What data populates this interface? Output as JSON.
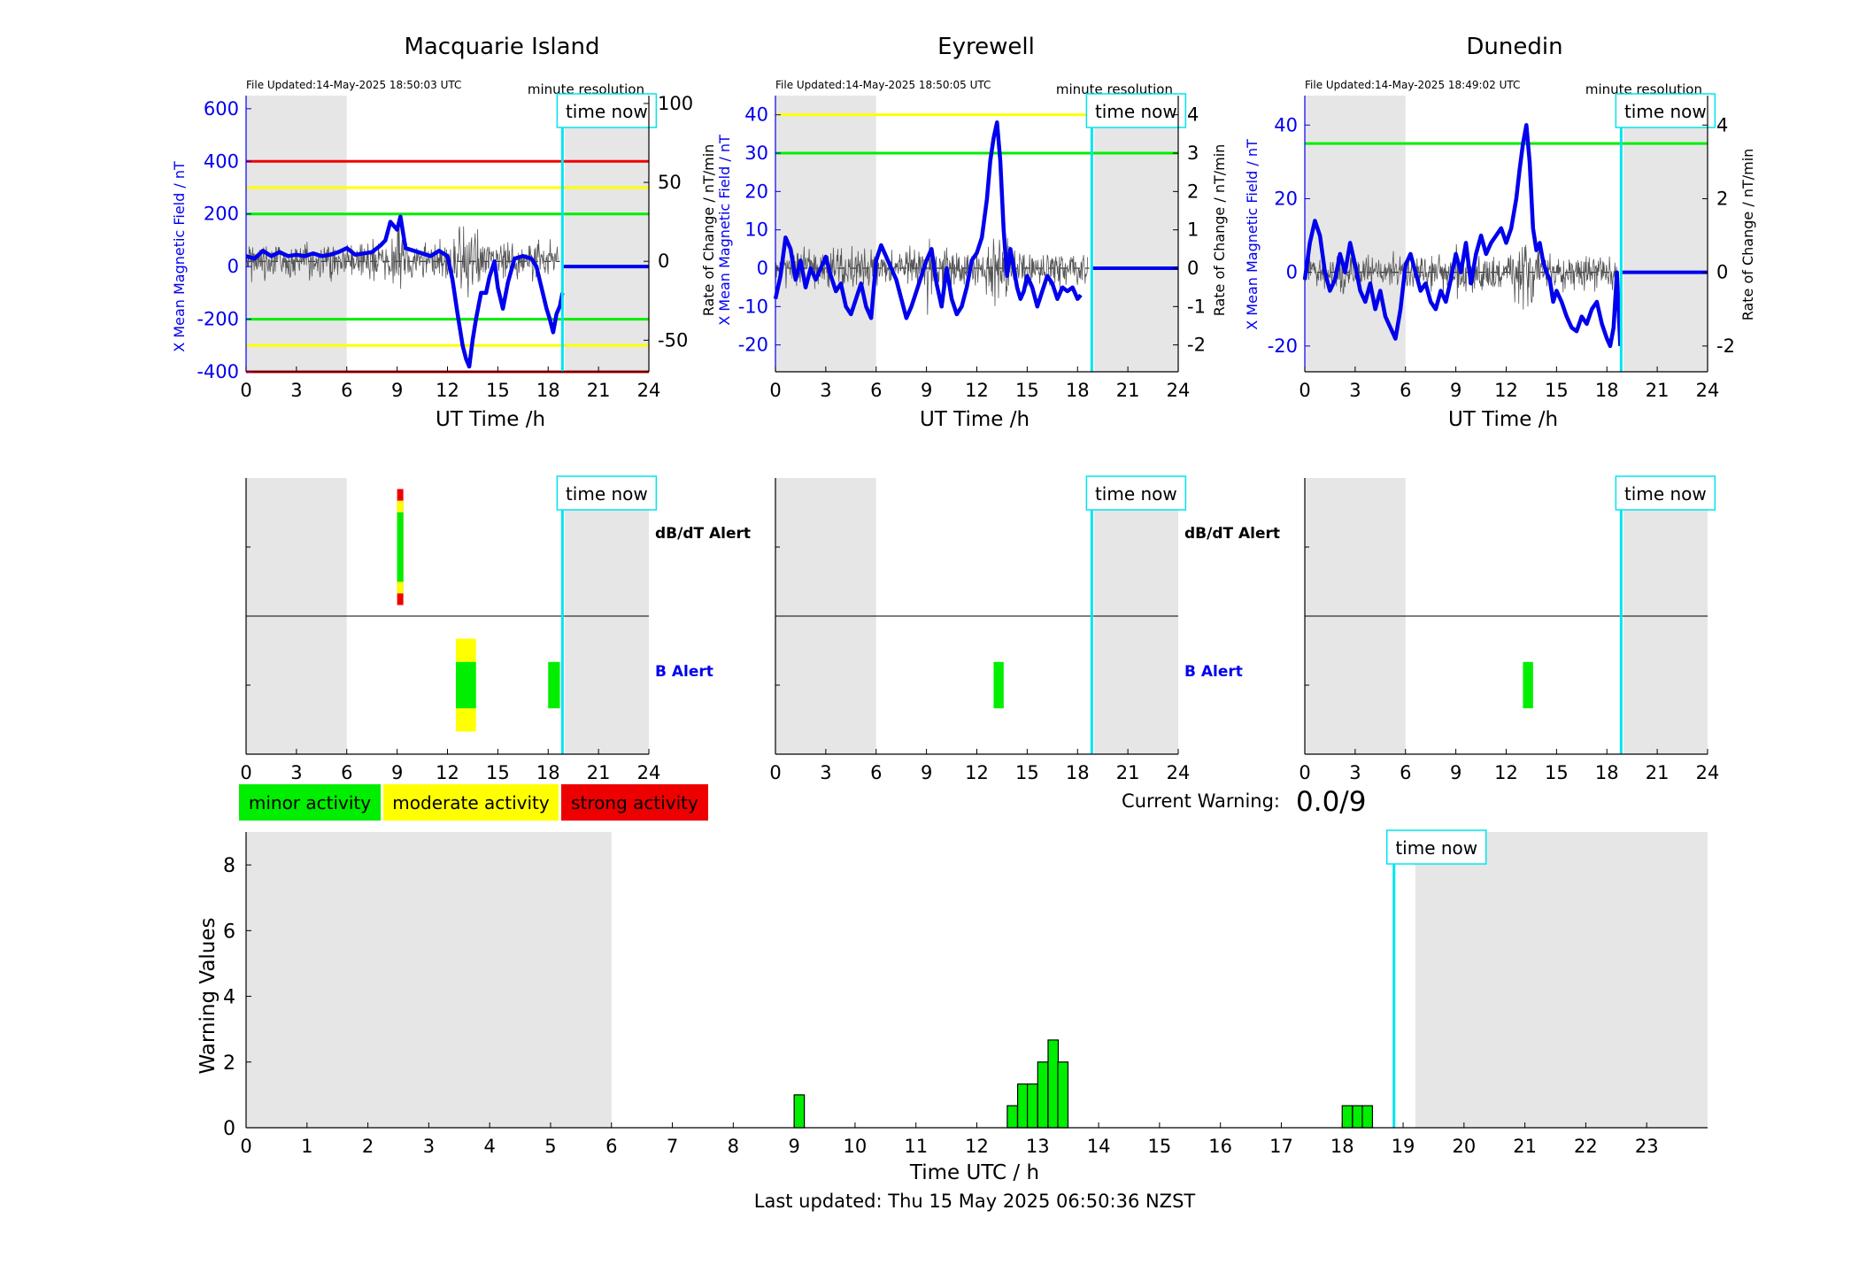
{
  "colors": {
    "blue": "#0000ee",
    "cyan": "#00e5ee",
    "green": "#00ee00",
    "yellow": "#ffff00",
    "red": "#ee0000",
    "grey": "#e6e6e6",
    "noise": "#555555"
  },
  "common": {
    "x_ticks": [
      "0",
      "3",
      "6",
      "9",
      "12",
      "15",
      "18",
      "21",
      "24"
    ],
    "xlabel": "UT Time /h",
    "time_now_label": "time now",
    "time_now_h": 18.85,
    "shade_ranges_h": [
      [
        0,
        6
      ],
      [
        19,
        24
      ]
    ]
  },
  "stations": [
    {
      "name": "Macquarie Island",
      "file_updated": "File Updated:14-May-2025 18:50:03 UTC",
      "resolution": "minute resolution",
      "ylabel_left": "X Mean Magnetic Field / nT",
      "ylabel_right": "",
      "yticks_left": [
        "600",
        "400",
        "200",
        "0",
        "-200",
        "-400"
      ],
      "yticks_right": [
        "100",
        "50",
        "0",
        "-50"
      ],
      "dbdt_label": "dB/dT Alert",
      "b_label": "B Alert"
    },
    {
      "name": "Eyrewell",
      "file_updated": "File Updated:14-May-2025 18:50:05 UTC",
      "resolution": "minute resolution",
      "ylabel_left": "Rate of Change / nT/min\nX Mean Magnetic Field / nT",
      "ylabel_right": "Rate of Change / nT/min",
      "yticks_left": [
        "40",
        "30",
        "20",
        "10",
        "0",
        "-10",
        "-20"
      ],
      "yticks_right": [
        "4",
        "3",
        "2",
        "1",
        "0",
        "-1",
        "-2"
      ],
      "dbdt_label": "dB/dT Alert",
      "b_label": "B Alert"
    },
    {
      "name": "Dunedin",
      "file_updated": "File Updated:14-May-2025 18:49:02 UTC",
      "resolution": "minute resolution",
      "ylabel_left": "X Mean Magnetic Field / nT",
      "ylabel_right": "Rate of Change / nT/min",
      "yticks_left": [
        "40",
        "20",
        "0",
        "-20"
      ],
      "yticks_right": [
        "4",
        "2",
        "0",
        "-2"
      ],
      "dbdt_label": "",
      "b_label": ""
    }
  ],
  "legend": {
    "minor": "minor activity",
    "moderate": "moderate activity",
    "strong": "strong activity"
  },
  "current_warning": {
    "label": "Current Warning:",
    "value": "0.0/9"
  },
  "footer": "Last updated: Thu 15 May 2025 06:50:36 NZST",
  "chart_data": [
    {
      "type": "line",
      "title": "Macquarie Island",
      "xlabel": "UT Time /h",
      "ylabel": "X Mean Magnetic Field / nT",
      "xlim": [
        0,
        24
      ],
      "ylim": [
        -400,
        650
      ],
      "y2lim": [
        -70,
        105
      ],
      "thresholds_nT": [
        {
          "y": 400,
          "color": "red"
        },
        {
          "y": 300,
          "color": "yellow"
        },
        {
          "y": 200,
          "color": "green"
        },
        {
          "y": -200,
          "color": "green"
        },
        {
          "y": -300,
          "color": "yellow"
        },
        {
          "y": -400,
          "color": "red"
        }
      ],
      "series": [
        {
          "x": [
            0,
            0.5,
            1,
            1.5,
            2,
            2.5,
            3,
            3.5,
            4,
            4.5,
            5,
            5.5,
            6,
            6.5,
            7,
            7.5,
            8,
            8.3,
            8.6,
            9,
            9.2,
            9.5,
            10,
            10.5,
            11,
            11.5,
            12,
            12.3,
            12.6,
            12.9,
            13.1,
            13.3,
            13.5,
            13.7,
            14,
            14.3,
            14.5,
            14.8,
            15,
            15.3,
            15.6,
            16,
            16.5,
            17,
            17.3,
            17.6,
            17.9,
            18.1,
            18.3,
            18.5,
            18.7,
            18.85
          ],
          "y": [
            40,
            30,
            60,
            40,
            55,
            40,
            45,
            40,
            50,
            40,
            45,
            55,
            70,
            45,
            50,
            55,
            80,
            100,
            170,
            140,
            190,
            70,
            60,
            50,
            40,
            60,
            40,
            -50,
            -180,
            -300,
            -350,
            -380,
            -280,
            -200,
            -100,
            -100,
            -40,
            20,
            -80,
            -160,
            -60,
            30,
            40,
            30,
            0,
            -80,
            -160,
            -200,
            -250,
            -180,
            -150,
            -100
          ]
        }
      ]
    },
    {
      "type": "line",
      "title": "Eyrewell",
      "xlabel": "UT Time /h",
      "ylabel": "X Mean Magnetic Field / nT",
      "xlim": [
        0,
        24
      ],
      "ylim": [
        -27,
        45
      ],
      "y2lim": [
        -2.7,
        4.5
      ],
      "thresholds_nT": [
        {
          "y": 40,
          "color": "yellow"
        },
        {
          "y": 30,
          "color": "green"
        }
      ],
      "series": [
        {
          "x": [
            0,
            0.3,
            0.6,
            0.9,
            1.2,
            1.5,
            1.8,
            2.1,
            2.4,
            2.7,
            3,
            3.3,
            3.6,
            3.9,
            4.2,
            4.5,
            4.8,
            5.1,
            5.4,
            5.7,
            6,
            6.3,
            6.6,
            6.9,
            7.2,
            7.5,
            7.8,
            8.1,
            8.4,
            8.7,
            9,
            9.3,
            9.6,
            9.9,
            10.2,
            10.5,
            10.8,
            11.1,
            11.4,
            11.7,
            12,
            12.3,
            12.6,
            12.8,
            13,
            13.2,
            13.4,
            13.6,
            13.8,
            14,
            14.2,
            14.4,
            14.6,
            14.8,
            15,
            15.3,
            15.6,
            15.9,
            16.2,
            16.5,
            16.8,
            17.1,
            17.4,
            17.7,
            18,
            18.2
          ],
          "y": [
            -8,
            -2,
            8,
            5,
            -3,
            2,
            -5,
            0,
            -3,
            0,
            3,
            -2,
            -6,
            -4,
            -10,
            -12,
            -8,
            -4,
            -10,
            -13,
            2,
            6,
            3,
            0,
            -3,
            -8,
            -13,
            -10,
            -6,
            -2,
            2,
            5,
            -4,
            -10,
            0,
            -8,
            -12,
            -10,
            -5,
            2,
            4,
            8,
            18,
            28,
            34,
            38,
            28,
            10,
            -2,
            5,
            0,
            -5,
            -8,
            -6,
            -2,
            -5,
            -10,
            -6,
            -2,
            -4,
            -8,
            -5,
            -6,
            -5,
            -8,
            -7
          ]
        }
      ]
    },
    {
      "type": "line",
      "title": "Dunedin",
      "xlabel": "UT Time /h",
      "ylabel": "X Mean Magnetic Field / nT",
      "xlim": [
        0,
        24
      ],
      "ylim": [
        -27,
        48
      ],
      "y2lim": [
        -2.7,
        4.8
      ],
      "thresholds_nT": [
        {
          "y": 35,
          "color": "green"
        }
      ],
      "series": [
        {
          "x": [
            0,
            0.3,
            0.6,
            0.9,
            1.2,
            1.5,
            1.8,
            2.1,
            2.4,
            2.7,
            3,
            3.3,
            3.6,
            3.9,
            4.2,
            4.5,
            4.8,
            5.1,
            5.4,
            5.7,
            6,
            6.3,
            6.6,
            6.9,
            7.2,
            7.5,
            7.8,
            8.1,
            8.4,
            8.7,
            9,
            9.3,
            9.6,
            9.9,
            10.2,
            10.5,
            10.8,
            11.1,
            11.4,
            11.7,
            12,
            12.3,
            12.6,
            12.8,
            13,
            13.2,
            13.4,
            13.6,
            13.8,
            14,
            14.2,
            14.4,
            14.6,
            14.8,
            15,
            15.3,
            15.6,
            15.9,
            16.2,
            16.5,
            16.8,
            17.1,
            17.4,
            17.7,
            18,
            18.2,
            18.4,
            18.6,
            18.8
          ],
          "y": [
            -2,
            8,
            14,
            10,
            0,
            -5,
            -2,
            5,
            0,
            8,
            2,
            -5,
            -8,
            -3,
            -10,
            -5,
            -12,
            -15,
            -18,
            -10,
            2,
            5,
            0,
            -5,
            -3,
            -8,
            -10,
            -5,
            -8,
            -2,
            5,
            0,
            8,
            -3,
            5,
            10,
            5,
            8,
            10,
            12,
            8,
            12,
            20,
            28,
            35,
            40,
            30,
            12,
            6,
            8,
            3,
            0,
            -2,
            -8,
            -5,
            -8,
            -12,
            -15,
            -16,
            -12,
            -14,
            -10,
            -8,
            -14,
            -18,
            -20,
            -15,
            0,
            -20
          ]
        }
      ]
    },
    {
      "type": "bar",
      "title": "",
      "xlabel": "Time UTC / h",
      "ylabel": "Warning Values",
      "xlim": [
        0,
        24
      ],
      "ylim": [
        0,
        9
      ],
      "x_ticks": [
        "0",
        "1",
        "2",
        "3",
        "4",
        "5",
        "6",
        "7",
        "8",
        "9",
        "10",
        "11",
        "12",
        "13",
        "14",
        "15",
        "16",
        "17",
        "18",
        "19",
        "20",
        "21",
        "22",
        "23"
      ],
      "y_ticks": [
        "0",
        "2",
        "4",
        "6",
        "8"
      ],
      "bar_width_h": 0.167,
      "bars": [
        {
          "x": 9.0,
          "value": 1.0
        },
        {
          "x": 12.5,
          "value": 0.67
        },
        {
          "x": 12.67,
          "value": 1.33
        },
        {
          "x": 12.83,
          "value": 1.33
        },
        {
          "x": 13.0,
          "value": 2.0
        },
        {
          "x": 13.17,
          "value": 2.67
        },
        {
          "x": 13.33,
          "value": 2.0
        },
        {
          "x": 18.0,
          "value": 0.67
        },
        {
          "x": 18.17,
          "value": 0.67
        },
        {
          "x": 18.33,
          "value": 0.67
        }
      ]
    }
  ],
  "alerts": [
    {
      "station": "Macquarie Island",
      "dbdt": [
        {
          "start": 9.0,
          "end": 9.3,
          "level": "strong",
          "frac": 1.0
        },
        {
          "start": 9.0,
          "end": 9.3,
          "level": "moderate",
          "frac": 0.8
        },
        {
          "start": 9.0,
          "end": 9.3,
          "level": "minor",
          "frac": 0.6
        }
      ],
      "b": [
        {
          "start": 12.5,
          "end": 13.7,
          "level": "moderate",
          "frac": 0.8
        },
        {
          "start": 12.5,
          "end": 13.7,
          "level": "minor",
          "frac": 0.4
        },
        {
          "start": 18.0,
          "end": 18.7,
          "level": "minor",
          "frac": 0.4
        }
      ]
    },
    {
      "station": "Eyrewell",
      "dbdt": [],
      "b": [
        {
          "start": 13.0,
          "end": 13.6,
          "level": "minor",
          "frac": 0.4
        }
      ]
    },
    {
      "station": "Dunedin",
      "dbdt": [],
      "b": [
        {
          "start": 13.0,
          "end": 13.6,
          "level": "minor",
          "frac": 0.4
        }
      ]
    }
  ]
}
